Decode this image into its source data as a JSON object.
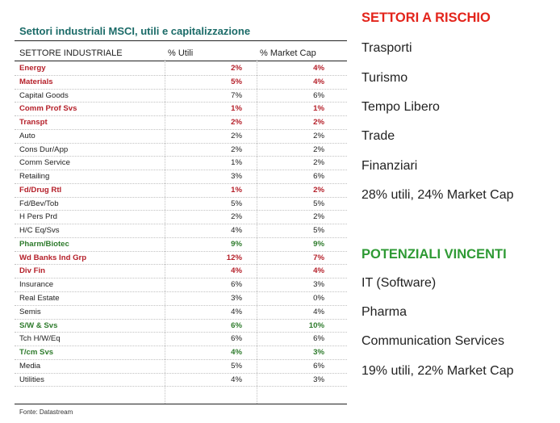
{
  "table": {
    "title": "Settori industriali MSCI, utili e capitalizzazione",
    "headers": [
      "SETTORE INDUSTRIALE",
      "% Utili",
      "% Market Cap"
    ],
    "rows": [
      {
        "sector": "Energy",
        "utili": "2%",
        "mcap": "4%",
        "style": "red"
      },
      {
        "sector": "Materials",
        "utili": "5%",
        "mcap": "4%",
        "style": "red"
      },
      {
        "sector": "Capital Goods",
        "utili": "7%",
        "mcap": "6%",
        "style": "normal"
      },
      {
        "sector": "Comm Prof Svs",
        "utili": "1%",
        "mcap": "1%",
        "style": "red"
      },
      {
        "sector": "Transpt",
        "utili": "2%",
        "mcap": "2%",
        "style": "red"
      },
      {
        "sector": "Auto",
        "utili": "2%",
        "mcap": "2%",
        "style": "normal"
      },
      {
        "sector": "Cons Dur/App",
        "utili": "2%",
        "mcap": "2%",
        "style": "normal"
      },
      {
        "sector": "Comm Service",
        "utili": "1%",
        "mcap": "2%",
        "style": "normal"
      },
      {
        "sector": "Retailing",
        "utili": "3%",
        "mcap": "6%",
        "style": "normal"
      },
      {
        "sector": "Fd/Drug Rtl",
        "utili": "1%",
        "mcap": "2%",
        "style": "red"
      },
      {
        "sector": "Fd/Bev/Tob",
        "utili": "5%",
        "mcap": "5%",
        "style": "normal"
      },
      {
        "sector": "H Pers Prd",
        "utili": "2%",
        "mcap": "2%",
        "style": "normal"
      },
      {
        "sector": "H/C Eq/Svs",
        "utili": "4%",
        "mcap": "5%",
        "style": "normal"
      },
      {
        "sector": "Pharm/Biotec",
        "utili": "9%",
        "mcap": "9%",
        "style": "green"
      },
      {
        "sector": "Wd Banks Ind Grp",
        "utili": "12%",
        "mcap": "7%",
        "style": "red"
      },
      {
        "sector": "Div Fin",
        "utili": "4%",
        "mcap": "4%",
        "style": "red"
      },
      {
        "sector": "Insurance",
        "utili": "6%",
        "mcap": "3%",
        "style": "normal"
      },
      {
        "sector": "Real Estate",
        "utili": "3%",
        "mcap": "0%",
        "style": "normal"
      },
      {
        "sector": "Semis",
        "utili": "4%",
        "mcap": "4%",
        "style": "normal"
      },
      {
        "sector": "S/W & Svs",
        "utili": "6%",
        "mcap": "10%",
        "style": "green"
      },
      {
        "sector": "Tch H/W/Eq",
        "utili": "6%",
        "mcap": "6%",
        "style": "normal"
      },
      {
        "sector": "T/cm Svs",
        "utili": "4%",
        "mcap": "3%",
        "style": "green"
      },
      {
        "sector": "Media",
        "utili": "5%",
        "mcap": "6%",
        "style": "normal"
      },
      {
        "sector": "Utilities",
        "utili": "4%",
        "mcap": "3%",
        "style": "normal"
      }
    ],
    "source": "Fonte: Datastream"
  },
  "colors": {
    "red": "#b5202a",
    "green": "#2e7b2c",
    "title_teal": "#1b6b68",
    "heading_red": "#e3241b",
    "heading_green": "#2e9a34"
  },
  "risk": {
    "title": "SETTORI A RISCHIO",
    "items": [
      "Trasporti",
      "Turismo",
      "Tempo Libero",
      "Trade",
      "Finanziari"
    ],
    "summary": "28% utili, 24% Market Cap"
  },
  "winners": {
    "title": "POTENZIALI VINCENTI",
    "items": [
      "IT (Software)",
      "Pharma",
      "Communication Services"
    ],
    "summary": "19% utili,  22% Market Cap"
  }
}
